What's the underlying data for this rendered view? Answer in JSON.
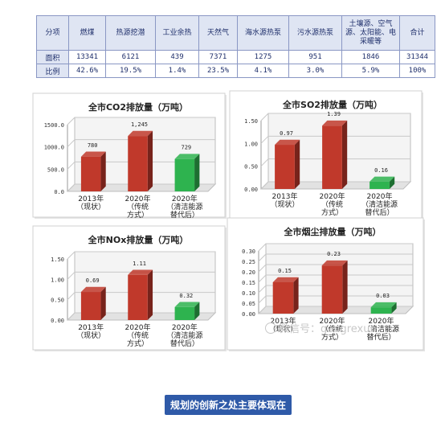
{
  "table": {
    "headers": [
      "分项",
      "燃煤",
      "热源挖潜",
      "工业余热",
      "天然气",
      "海水源热泵",
      "污水源热泵",
      "土壤源、空气源、太阳能、电采暖等",
      "合计"
    ],
    "rows": [
      [
        "面积",
        "13341",
        "6121",
        "439",
        "7371",
        "1275",
        "951",
        "1846",
        "31344"
      ],
      [
        "比例",
        "42.6%",
        "19.5%",
        "1.4%",
        "23.5%",
        "4.1%",
        "3.0%",
        "5.9%",
        "100%"
      ]
    ]
  },
  "chart_data": [
    {
      "type": "bar",
      "title": "全市CO2排放量（万吨）",
      "categories": [
        "2013年（现状）",
        "2020年（传统方式）",
        "2020年（清洁能源替代后）"
      ],
      "values": [
        780,
        1245,
        729
      ],
      "value_labels": [
        "780",
        "1,245",
        "729"
      ],
      "ylim": [
        0,
        1500
      ],
      "yticks": [
        "0.0",
        "500.0",
        "1000.0",
        "1500.0"
      ],
      "ytick_values": [
        0,
        500,
        1000,
        1500
      ],
      "colors": [
        "#c0392b",
        "#c0392b",
        "#2eb34f"
      ]
    },
    {
      "type": "bar",
      "title": "全市SO2排放量（万吨）",
      "categories": [
        "2013年（现状）",
        "2020年（传统方式）",
        "2020年（清洁能源替代后）"
      ],
      "values": [
        0.97,
        1.39,
        0.16
      ],
      "value_labels": [
        "0.97",
        "1.39",
        "0.16"
      ],
      "ylim": [
        0,
        1.5
      ],
      "yticks": [
        "0.00",
        "0.50",
        "1.00",
        "1.50"
      ],
      "ytick_values": [
        0,
        0.5,
        1.0,
        1.5
      ],
      "colors": [
        "#c0392b",
        "#c0392b",
        "#2eb34f"
      ]
    },
    {
      "type": "bar",
      "title": "全市NOx排放量（万吨）",
      "categories": [
        "2013年（现状）",
        "2020年（传统方式）",
        "2020年（清洁能源替代后）"
      ],
      "values": [
        0.69,
        1.11,
        0.32
      ],
      "value_labels": [
        "0.69",
        "1.11",
        "0.32"
      ],
      "ylim": [
        0,
        1.5
      ],
      "yticks": [
        "0.00",
        "0.50",
        "1.00",
        "1.50"
      ],
      "ytick_values": [
        0,
        0.5,
        1.0,
        1.5
      ],
      "colors": [
        "#c0392b",
        "#c0392b",
        "#2eb34f"
      ]
    },
    {
      "type": "bar",
      "title": "全市烟尘排放量（万吨）",
      "categories": [
        "2013年（现状）",
        "2020年（传统方式）",
        "2020年（清洁能源替代后）"
      ],
      "values": [
        0.15,
        0.23,
        0.03
      ],
      "value_labels": [
        "0.15",
        "0.23",
        "0.03"
      ],
      "ylim": [
        0,
        0.3
      ],
      "yticks": [
        "0.00",
        "0.05",
        "0.10",
        "0.15",
        "0.20",
        "0.25",
        "0.30"
      ],
      "ytick_values": [
        0,
        0.05,
        0.1,
        0.15,
        0.2,
        0.25,
        0.3
      ],
      "colors": [
        "#c0392b",
        "#c0392b",
        "#2eb34f"
      ]
    }
  ],
  "watermark": "微信号：gongrexun",
  "caption": "规划的创新之处主要体现在"
}
